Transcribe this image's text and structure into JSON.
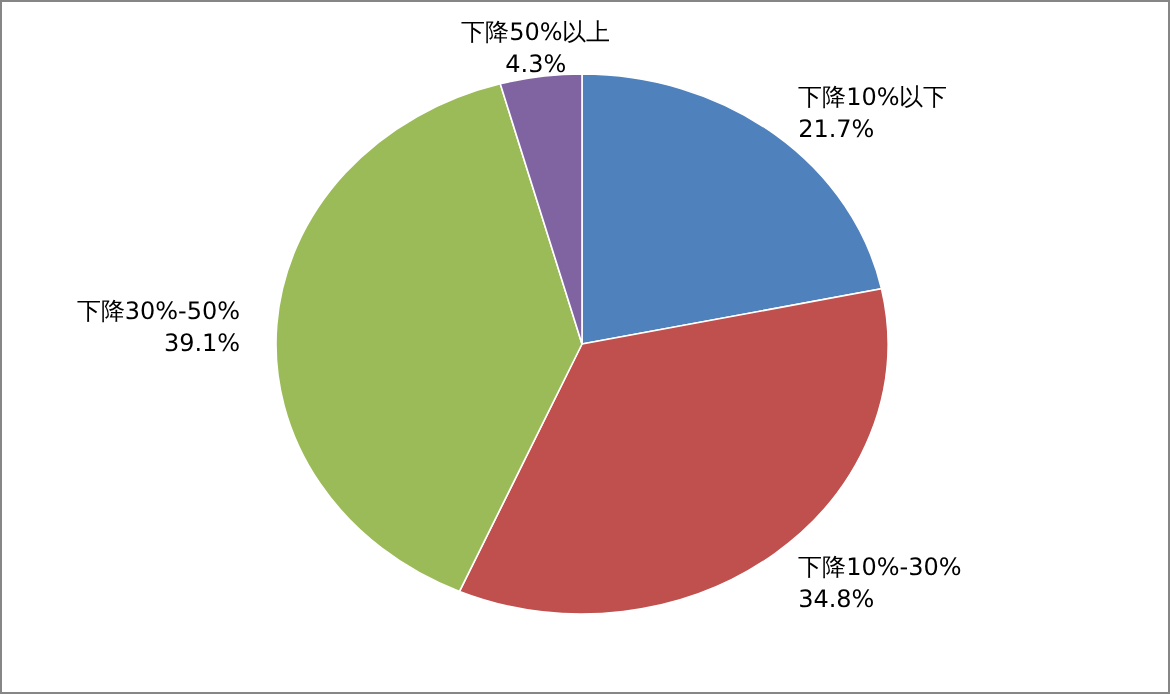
{
  "chart_data": {
    "type": "pie",
    "categories": [
      "下降10%以下",
      "下降10%-30%",
      "下降30%-50%",
      "下降50%以上"
    ],
    "values": [
      21.7,
      34.8,
      39.1,
      4.3
    ],
    "value_labels": [
      "21.7%",
      "34.8%",
      "39.1%",
      "4.3%"
    ],
    "colors": [
      "#4f81bd",
      "#c0504d",
      "#9bbb59",
      "#8064a2"
    ]
  }
}
